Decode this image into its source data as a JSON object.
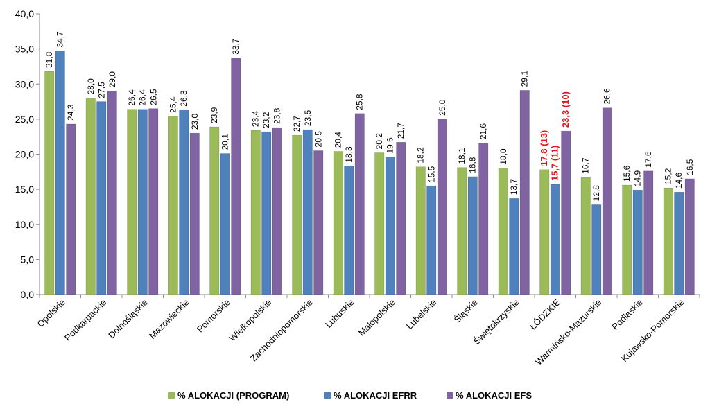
{
  "chart_data": {
    "type": "bar",
    "title": "",
    "xlabel": "",
    "ylabel": "",
    "ylim": [
      0,
      40
    ],
    "yticks": [
      "0,0",
      "5,0",
      "10,0",
      "15,0",
      "20,0",
      "25,0",
      "30,0",
      "35,0",
      "40,0"
    ],
    "ytick_values": [
      0,
      5,
      10,
      15,
      20,
      25,
      30,
      35,
      40
    ],
    "grid": false,
    "legend_position": "bottom",
    "categories": [
      "Opolskie",
      "Podkarpackie",
      "Dolnośląskie",
      "Mazowieckie",
      "Pomorskie",
      "Wielkopolskie",
      "Zachodniopomorskie",
      "Lubuskie",
      "Małopolskie",
      "Lubelskie",
      "Śląskie",
      "Świętokrzyskie",
      "ŁÓDZKIE",
      "Warmińsko-Mazurskie",
      "Podlaskie",
      "Kujawsko-Pomorskie"
    ],
    "series": [
      {
        "name": "% ALOKACJI (PROGRAM)",
        "color": "#9bbb59",
        "values": [
          31.8,
          28.0,
          26.4,
          25.4,
          23.9,
          23.4,
          22.7,
          20.4,
          20.2,
          18.2,
          18.1,
          18.0,
          17.8,
          16.7,
          15.6,
          15.2
        ],
        "labels": [
          "31,8",
          "28,0",
          "26,4",
          "25,4",
          "23,9",
          "23,4",
          "22,7",
          "20,4",
          "20,2",
          "18,2",
          "18,1",
          "18,0",
          "17,8 (13)",
          "16,7",
          "15,6",
          "15,2"
        ]
      },
      {
        "name": "% ALOKACJI EFRR",
        "color": "#4f81bd",
        "values": [
          34.7,
          27.5,
          26.4,
          26.3,
          20.1,
          23.2,
          23.5,
          18.3,
          19.6,
          15.5,
          16.8,
          13.7,
          15.7,
          12.8,
          14.9,
          14.6
        ],
        "labels": [
          "34,7",
          "27,5",
          "26,4",
          "26,3",
          "20,1",
          "23,2",
          "23,5",
          "18,3",
          "19,6",
          "15,5",
          "16,8",
          "13,7",
          "15,7 (11)",
          "12,8",
          "14,9",
          "14,6"
        ]
      },
      {
        "name": "% ALOKACJI EFS",
        "color": "#8064a2",
        "values": [
          24.3,
          29.0,
          26.5,
          23.0,
          33.7,
          23.8,
          20.5,
          25.8,
          21.7,
          25.0,
          21.6,
          29.1,
          23.3,
          26.6,
          17.6,
          16.5
        ],
        "labels": [
          "24,3",
          "29,0",
          "26,5",
          "23,0",
          "33,7",
          "23,8",
          "20,5",
          "25,8",
          "21,7",
          "25,0",
          "21,6",
          "29,1",
          "23,3 (10)",
          "26,6",
          "17,6",
          "16,5"
        ]
      }
    ],
    "highlight_category_index": 12,
    "highlight_color": "#e8141a"
  }
}
